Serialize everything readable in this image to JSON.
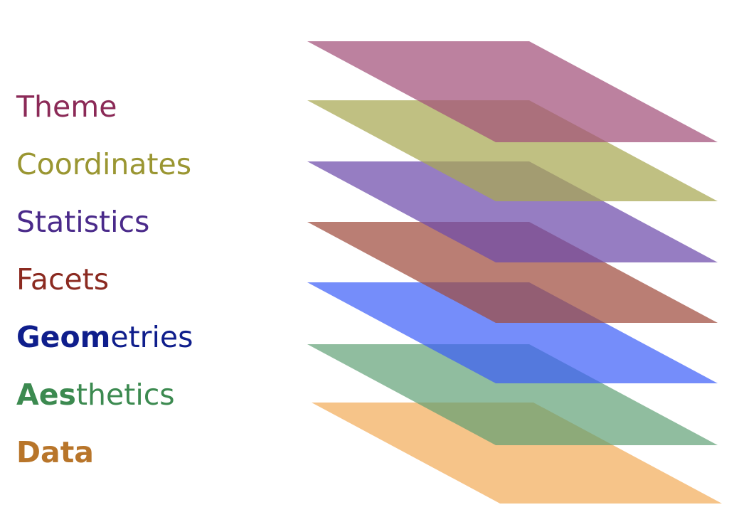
{
  "layers": [
    {
      "id": "theme",
      "bold": "",
      "rest": "Theme",
      "color": "#8b2a57",
      "fill": "#a2507a"
    },
    {
      "id": "coordinates",
      "bold": "",
      "rest": "Coordinates",
      "color": "#9a9632",
      "fill": "#a8a852"
    },
    {
      "id": "statistics",
      "bold": "",
      "rest": "Statistics",
      "color": "#4a2a8a",
      "fill": "#6e4bab"
    },
    {
      "id": "facets",
      "bold": "",
      "rest": "Facets",
      "color": "#8b2a20",
      "fill": "#a04c3e"
    },
    {
      "id": "geometries",
      "bold": "Geom",
      "rest": "etries",
      "color": "#0f1e8c",
      "fill": "#3b5cf8"
    },
    {
      "id": "aesthetics",
      "bold": "Aes",
      "rest": "thetics",
      "color": "#3c8a50",
      "fill": "#5c9e72"
    },
    {
      "id": "data",
      "bold": "Data",
      "rest": "",
      "color": "#b8752a",
      "fill": "#f3b061"
    }
  ]
}
